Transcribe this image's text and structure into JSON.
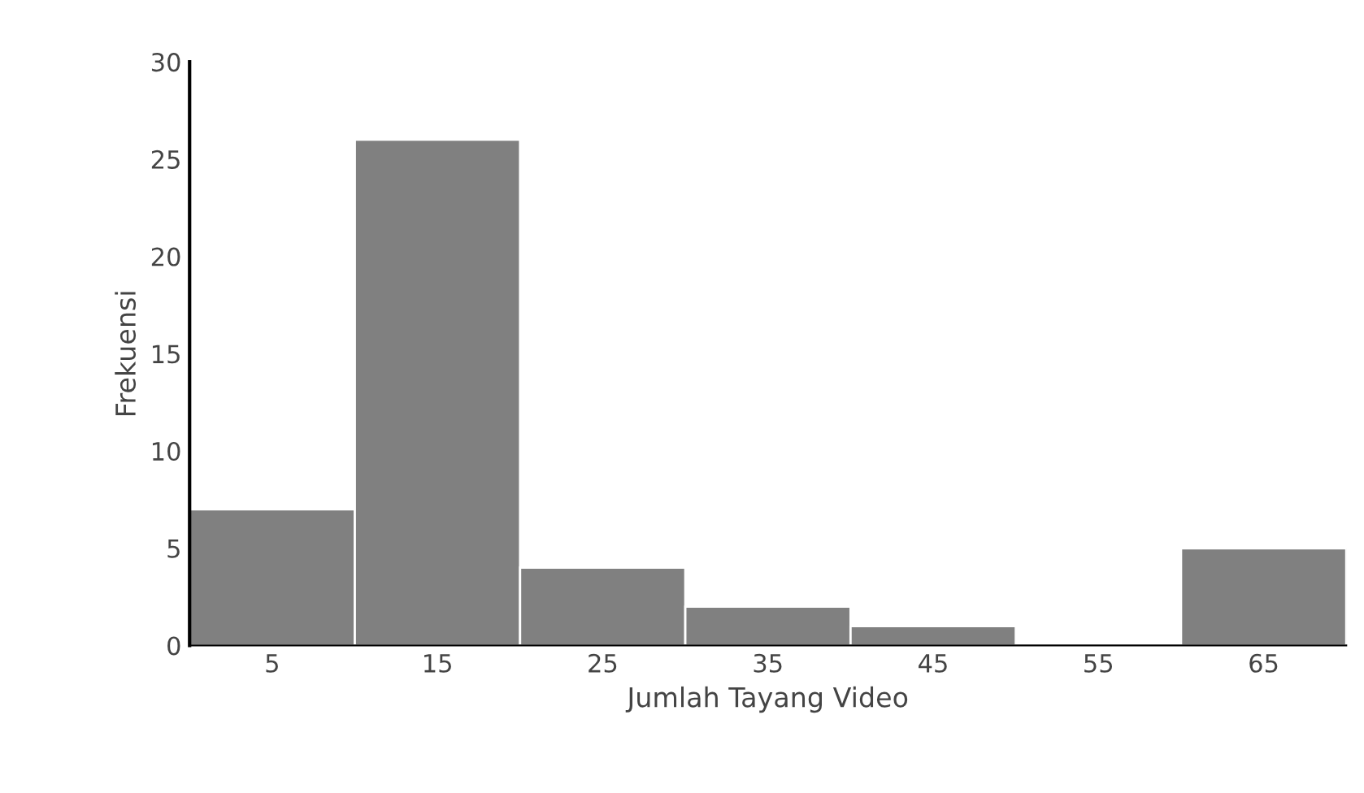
{
  "chart_data": {
    "type": "bar",
    "xlabel": "Jumlah Tayang Video",
    "ylabel": "Frekuensi",
    "categories": [
      "5",
      "15",
      "25",
      "35",
      "45",
      "55",
      "65"
    ],
    "values": [
      7,
      26,
      4,
      2,
      1,
      0,
      5
    ],
    "color": "#808080",
    "ylim": [
      0,
      30
    ],
    "yticks": [
      0,
      5,
      10,
      15,
      20,
      25,
      30
    ],
    "grid": false,
    "legend": false
  }
}
